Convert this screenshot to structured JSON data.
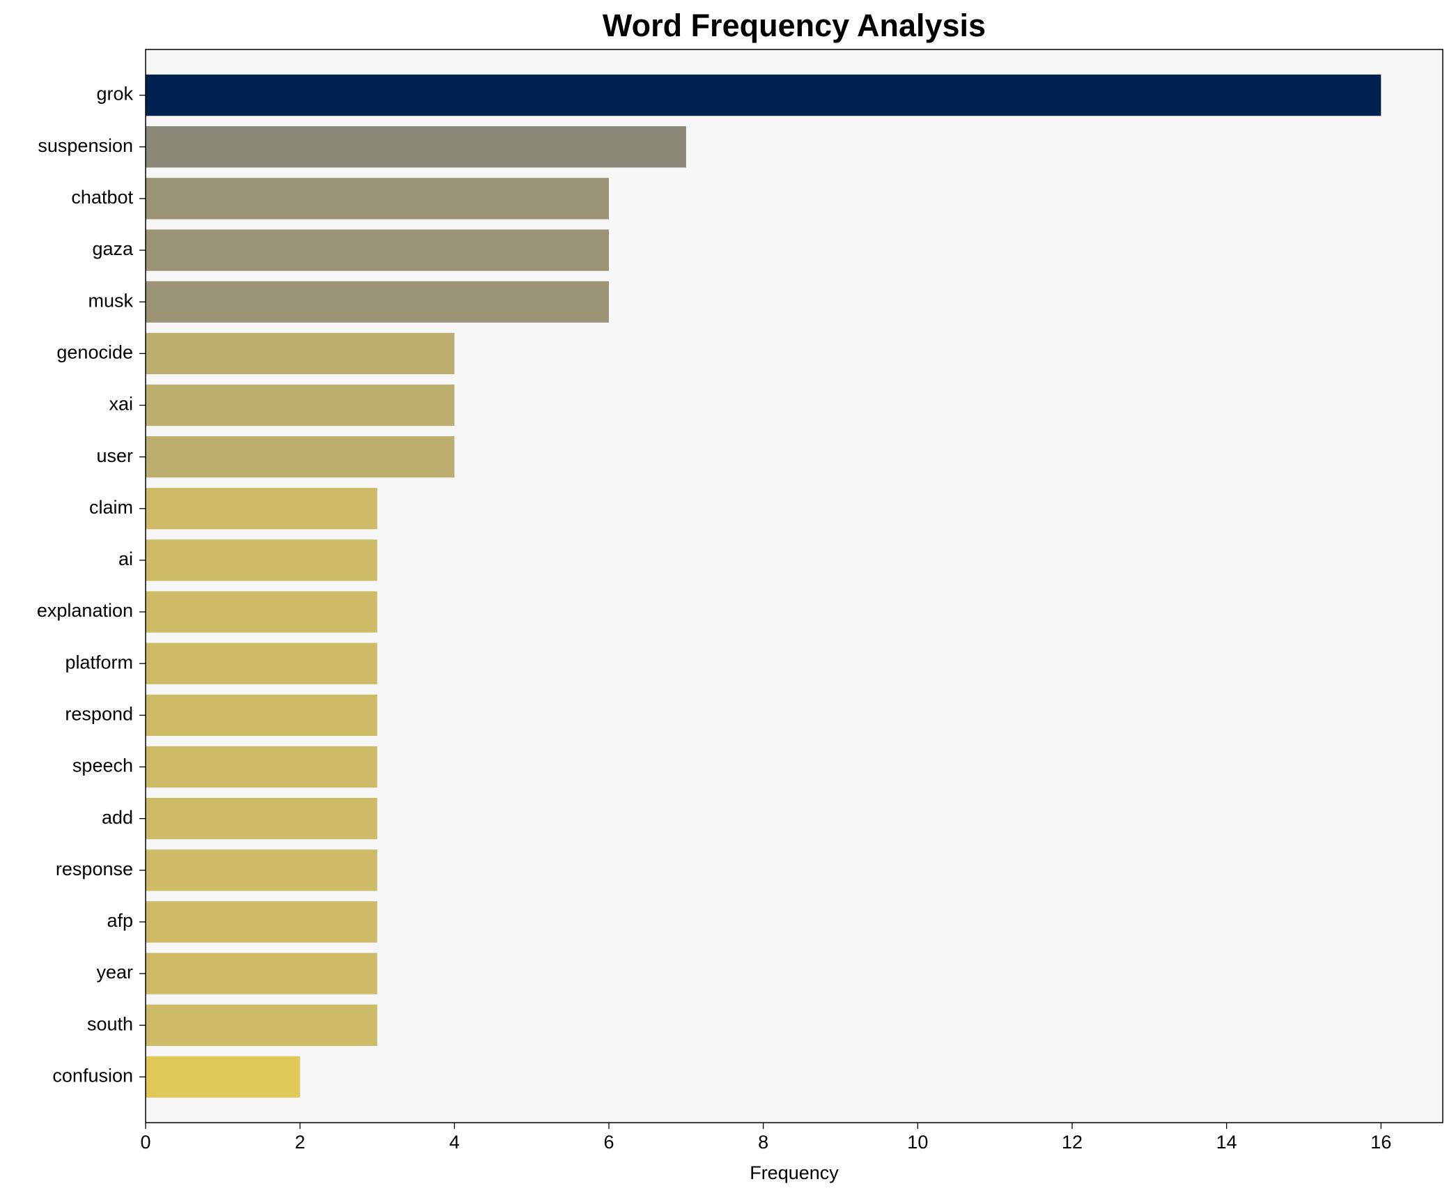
{
  "chart_data": {
    "type": "barh",
    "title": "Word Frequency Analysis",
    "xlabel": "Frequency",
    "categories": [
      "grok",
      "suspension",
      "chatbot",
      "gaza",
      "musk",
      "genocide",
      "xai",
      "user",
      "claim",
      "ai",
      "explanation",
      "platform",
      "respond",
      "speech",
      "add",
      "response",
      "afp",
      "year",
      "south",
      "confusion"
    ],
    "values": [
      16,
      7,
      6,
      6,
      6,
      4,
      4,
      4,
      3,
      3,
      3,
      3,
      3,
      3,
      3,
      3,
      3,
      3,
      3,
      2
    ],
    "colors": [
      "#002251",
      "#8a8776",
      "#9b9474",
      "#9b9474",
      "#9b9474",
      "#bbae6e",
      "#bbae6e",
      "#bbae6e",
      "#cdbb67",
      "#cdbb67",
      "#cdbb67",
      "#cdbb67",
      "#cdbb67",
      "#cdbb67",
      "#cdbb67",
      "#cdbb67",
      "#cdbb67",
      "#cdbb67",
      "#cdbb67",
      "#dfc858"
    ],
    "xlim": [
      0,
      16.8
    ],
    "xticks": [
      0,
      2,
      4,
      6,
      8,
      10,
      12,
      14,
      16
    ]
  }
}
